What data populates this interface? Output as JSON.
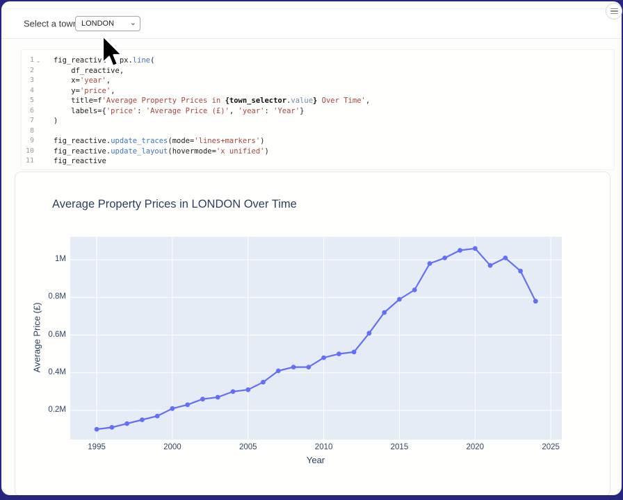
{
  "app": {
    "background_color": "#26267f",
    "card_color": "#fdfdfc"
  },
  "icons": {
    "menu": "hamburger-menu-icon",
    "select_chevron": "chevron-down-icon",
    "select_chevron_glyph": "⌄",
    "fold": "chevron-down-icon",
    "fold_glyph": "⌄",
    "cursor": "arrow-cursor-icon"
  },
  "header": {
    "label": "Select a town:",
    "town_select": {
      "value": "LONDON",
      "options": [
        "LONDON"
      ]
    }
  },
  "code": {
    "lines": [
      {
        "n": "1",
        "fold": true,
        "segs": [
          {
            "t": "fig_reactive = px.",
            "c": "d"
          },
          {
            "t": "line",
            "c": "m"
          },
          {
            "t": "(",
            "c": "d"
          }
        ]
      },
      {
        "n": "2",
        "segs": [
          {
            "t": "    df_reactive,",
            "c": "d"
          }
        ]
      },
      {
        "n": "3",
        "segs": [
          {
            "t": "    x=",
            "c": "d"
          },
          {
            "t": "'year'",
            "c": "s"
          },
          {
            "t": ",",
            "c": "d"
          }
        ]
      },
      {
        "n": "4",
        "segs": [
          {
            "t": "    y=",
            "c": "d"
          },
          {
            "t": "'price'",
            "c": "s"
          },
          {
            "t": ",",
            "c": "d"
          }
        ]
      },
      {
        "n": "5",
        "segs": [
          {
            "t": "    title=f",
            "c": "d"
          },
          {
            "t": "'Average Property Prices in ",
            "c": "s"
          },
          {
            "t": "{town_selector",
            "c": "b"
          },
          {
            "t": ".",
            "c": "d"
          },
          {
            "t": "value",
            "c": "p"
          },
          {
            "t": "}",
            "c": "b"
          },
          {
            "t": " Over Time'",
            "c": "s"
          },
          {
            "t": ",",
            "c": "d"
          }
        ]
      },
      {
        "n": "6",
        "segs": [
          {
            "t": "    labels={",
            "c": "d"
          },
          {
            "t": "'price'",
            "c": "s"
          },
          {
            "t": ": ",
            "c": "d"
          },
          {
            "t": "'Average Price (£)'",
            "c": "s"
          },
          {
            "t": ", ",
            "c": "d"
          },
          {
            "t": "'year'",
            "c": "s"
          },
          {
            "t": ": ",
            "c": "d"
          },
          {
            "t": "'Year'",
            "c": "s"
          },
          {
            "t": "}",
            "c": "d"
          }
        ]
      },
      {
        "n": "7",
        "segs": [
          {
            "t": ")",
            "c": "d"
          }
        ]
      },
      {
        "n": "8",
        "segs": []
      },
      {
        "n": "9",
        "segs": [
          {
            "t": "fig_reactive.",
            "c": "d"
          },
          {
            "t": "update_traces",
            "c": "m"
          },
          {
            "t": "(mode=",
            "c": "d"
          },
          {
            "t": "'lines+markers'",
            "c": "s"
          },
          {
            "t": ")",
            "c": "d"
          }
        ]
      },
      {
        "n": "10",
        "segs": [
          {
            "t": "fig_reactive.",
            "c": "d"
          },
          {
            "t": "update_layout",
            "c": "m"
          },
          {
            "t": "(hovermode=",
            "c": "d"
          },
          {
            "t": "'x unified'",
            "c": "s"
          },
          {
            "t": ")",
            "c": "d"
          }
        ]
      },
      {
        "n": "11",
        "segs": [
          {
            "t": "fig_reactive",
            "c": "d"
          }
        ]
      }
    ]
  },
  "chart_data": {
    "type": "line",
    "title": "Average Property Prices in LONDON Over Time",
    "xlabel": "Year",
    "ylabel": "Average Price (£)",
    "series": [
      {
        "name": "price",
        "x": [
          1995,
          1996,
          1997,
          1998,
          1999,
          2000,
          2001,
          2002,
          2003,
          2004,
          2005,
          2006,
          2007,
          2008,
          2009,
          2010,
          2011,
          2012,
          2013,
          2014,
          2015,
          2016,
          2017,
          2018,
          2019,
          2020,
          2021,
          2022,
          2023,
          2024
        ],
        "y_millions": [
          0.1,
          0.11,
          0.13,
          0.15,
          0.17,
          0.21,
          0.23,
          0.26,
          0.27,
          0.3,
          0.31,
          0.35,
          0.41,
          0.43,
          0.43,
          0.48,
          0.5,
          0.51,
          0.61,
          0.72,
          0.79,
          0.84,
          0.98,
          1.01,
          1.05,
          1.06,
          0.97,
          1.01,
          0.94,
          0.78
        ]
      }
    ],
    "mode": "lines+markers",
    "xlim": [
      1993.25,
      2025.73
    ],
    "ylim": [
      0.045,
      1.122
    ],
    "xticks": [
      {
        "v": 1995,
        "label": "1995"
      },
      {
        "v": 2000,
        "label": "2000"
      },
      {
        "v": 2005,
        "label": "2005"
      },
      {
        "v": 2010,
        "label": "2010"
      },
      {
        "v": 2015,
        "label": "2015"
      },
      {
        "v": 2020,
        "label": "2020"
      },
      {
        "v": 2025,
        "label": "2025"
      }
    ],
    "yticks": [
      {
        "v": 0.2,
        "label": "0.2M"
      },
      {
        "v": 0.4,
        "label": "0.4M"
      },
      {
        "v": 0.6,
        "label": "0.6M"
      },
      {
        "v": 0.8,
        "label": "0.8M"
      },
      {
        "v": 1.0,
        "label": "1M"
      }
    ],
    "grid": true,
    "legend": "none",
    "line_color": "#636efa",
    "plot_bg": "#e5ecf6",
    "grid_color": "#ffffff"
  }
}
